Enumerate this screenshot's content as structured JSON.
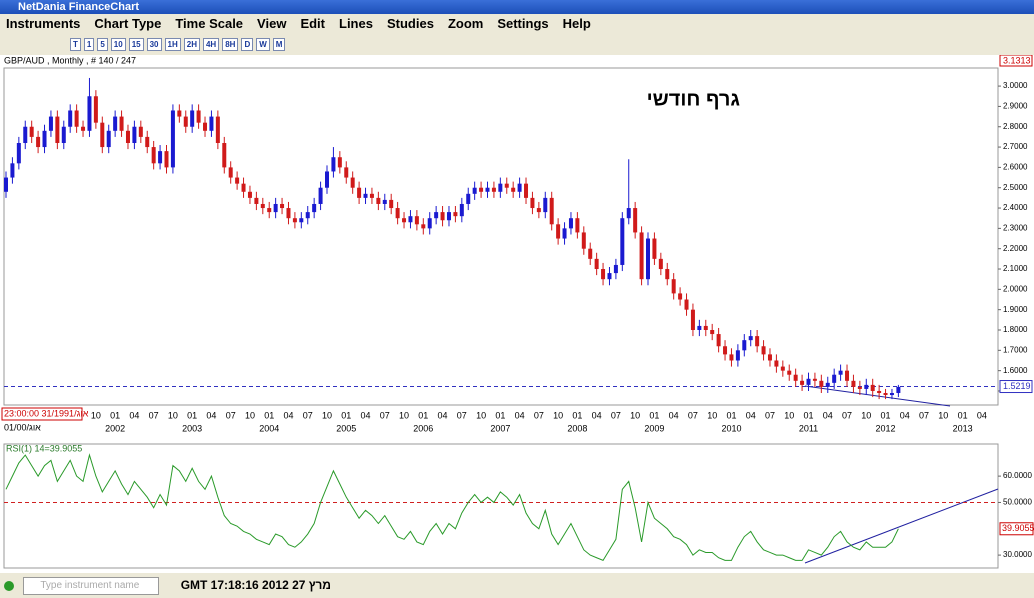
{
  "window": {
    "title": "NetDania FinanceChart"
  },
  "menu": [
    "Instruments",
    "Chart Type",
    "Time Scale",
    "View",
    "Edit",
    "Lines",
    "Studies",
    "Zoom",
    "Settings",
    "Help"
  ],
  "toolbar": {
    "buttons": [
      "T",
      "1",
      "5",
      "10",
      "15",
      "30",
      "1H",
      "2H",
      "4H",
      "8H",
      "D",
      "W",
      "M"
    ]
  },
  "instrument_label": "GBP/AUD , Monthly , # 140 / 247",
  "price_marker": "3.1313",
  "date_box": "23:00:00 31/1991/אוג",
  "date_sub": "01/00/אוג",
  "status": {
    "search_placeholder": "Type instrument name",
    "clock": "GMT 17:18:16 2012 מרץ 27"
  },
  "chart_data": [
    {
      "type": "candlestick",
      "annotation": "גרף חודשי",
      "up_color": "#1a1ad0",
      "down_color": "#d01a1a",
      "open": [
        2.48,
        2.55,
        2.62,
        2.72,
        2.8,
        2.75,
        2.7,
        2.78,
        2.85,
        2.72,
        2.8,
        2.88,
        2.8,
        2.78,
        2.95,
        2.82,
        2.7,
        2.78,
        2.85,
        2.78,
        2.72,
        2.8,
        2.75,
        2.7,
        2.62,
        2.68,
        2.6,
        2.88,
        2.85,
        2.8,
        2.88,
        2.82,
        2.78,
        2.85,
        2.72,
        2.6,
        2.55,
        2.52,
        2.48,
        2.45,
        2.42,
        2.4,
        2.38,
        2.42,
        2.4,
        2.35,
        2.33,
        2.35,
        2.38,
        2.42,
        2.5,
        2.58,
        2.65,
        2.6,
        2.55,
        2.5,
        2.45,
        2.47,
        2.45,
        2.42,
        2.44,
        2.4,
        2.35,
        2.33,
        2.36,
        2.32,
        2.3,
        2.35,
        2.38,
        2.34,
        2.38,
        2.36,
        2.42,
        2.47,
        2.5,
        2.48,
        2.5,
        2.48,
        2.52,
        2.5,
        2.48,
        2.52,
        2.45,
        2.4,
        2.38,
        2.45,
        2.32,
        2.25,
        2.3,
        2.35,
        2.28,
        2.2,
        2.15,
        2.1,
        2.05,
        2.08,
        2.12,
        2.35,
        2.4,
        2.28,
        2.05,
        2.25,
        2.15,
        2.1,
        2.05,
        1.98,
        1.95,
        1.9,
        1.8,
        1.82,
        1.8,
        1.78,
        1.72,
        1.68,
        1.65,
        1.7,
        1.75,
        1.77,
        1.72,
        1.68,
        1.65,
        1.62,
        1.6,
        1.58,
        1.55,
        1.53,
        1.56,
        1.55,
        1.52,
        1.54,
        1.58,
        1.6,
        1.55,
        1.52,
        1.51,
        1.53,
        1.5,
        1.49,
        1.48,
        1.49
      ],
      "high": [
        2.58,
        2.65,
        2.75,
        2.83,
        2.83,
        2.78,
        2.81,
        2.88,
        2.88,
        2.83,
        2.91,
        2.91,
        2.83,
        3.04,
        2.98,
        2.85,
        2.81,
        2.88,
        2.88,
        2.81,
        2.83,
        2.83,
        2.78,
        2.73,
        2.71,
        2.71,
        2.91,
        2.91,
        2.88,
        2.91,
        2.91,
        2.85,
        2.88,
        2.88,
        2.75,
        2.63,
        2.58,
        2.55,
        2.51,
        2.48,
        2.45,
        2.43,
        2.45,
        2.45,
        2.43,
        2.38,
        2.38,
        2.41,
        2.45,
        2.53,
        2.61,
        2.7,
        2.68,
        2.63,
        2.58,
        2.53,
        2.5,
        2.5,
        2.48,
        2.47,
        2.47,
        2.43,
        2.38,
        2.39,
        2.39,
        2.35,
        2.38,
        2.41,
        2.41,
        2.41,
        2.41,
        2.45,
        2.5,
        2.53,
        2.53,
        2.53,
        2.53,
        2.55,
        2.55,
        2.53,
        2.55,
        2.55,
        2.48,
        2.43,
        2.48,
        2.48,
        2.35,
        2.33,
        2.38,
        2.38,
        2.31,
        2.23,
        2.18,
        2.13,
        2.11,
        2.15,
        2.38,
        2.64,
        2.43,
        2.31,
        2.28,
        2.28,
        2.18,
        2.13,
        2.08,
        2.01,
        1.98,
        1.93,
        1.85,
        1.85,
        1.83,
        1.81,
        1.75,
        1.71,
        1.73,
        1.78,
        1.8,
        1.8,
        1.75,
        1.71,
        1.68,
        1.65,
        1.63,
        1.61,
        1.58,
        1.59,
        1.59,
        1.58,
        1.57,
        1.61,
        1.63,
        1.63,
        1.58,
        1.55,
        1.56,
        1.56,
        1.53,
        1.51,
        1.51,
        1.53
      ],
      "low": [
        2.45,
        2.52,
        2.59,
        2.69,
        2.72,
        2.67,
        2.67,
        2.75,
        2.69,
        2.69,
        2.77,
        2.77,
        2.75,
        2.75,
        2.79,
        2.67,
        2.67,
        2.75,
        2.75,
        2.69,
        2.69,
        2.72,
        2.67,
        2.59,
        2.59,
        2.57,
        2.57,
        2.82,
        2.77,
        2.77,
        2.79,
        2.75,
        2.75,
        2.69,
        2.57,
        2.52,
        2.49,
        2.45,
        2.42,
        2.39,
        2.37,
        2.35,
        2.35,
        2.37,
        2.32,
        2.3,
        2.3,
        2.32,
        2.35,
        2.39,
        2.47,
        2.55,
        2.57,
        2.52,
        2.47,
        2.42,
        2.42,
        2.42,
        2.39,
        2.39,
        2.37,
        2.32,
        2.3,
        2.3,
        2.29,
        2.27,
        2.27,
        2.32,
        2.31,
        2.31,
        2.33,
        2.33,
        2.39,
        2.44,
        2.45,
        2.45,
        2.45,
        2.45,
        2.47,
        2.45,
        2.45,
        2.42,
        2.37,
        2.35,
        2.35,
        2.29,
        2.22,
        2.22,
        2.27,
        2.25,
        2.17,
        2.12,
        2.07,
        2.02,
        2.02,
        2.05,
        2.09,
        2.32,
        2.25,
        2.02,
        2.02,
        2.12,
        2.07,
        2.02,
        1.95,
        1.92,
        1.87,
        1.77,
        1.77,
        1.77,
        1.75,
        1.69,
        1.65,
        1.62,
        1.62,
        1.67,
        1.72,
        1.69,
        1.65,
        1.62,
        1.59,
        1.57,
        1.55,
        1.52,
        1.5,
        1.5,
        1.52,
        1.49,
        1.49,
        1.51,
        1.55,
        1.52,
        1.49,
        1.48,
        1.48,
        1.47,
        1.46,
        1.46,
        1.46,
        1.47
      ],
      "close": [
        2.55,
        2.62,
        2.72,
        2.8,
        2.75,
        2.7,
        2.78,
        2.85,
        2.72,
        2.8,
        2.88,
        2.8,
        2.78,
        2.95,
        2.82,
        2.7,
        2.78,
        2.85,
        2.78,
        2.72,
        2.8,
        2.75,
        2.7,
        2.62,
        2.68,
        2.6,
        2.88,
        2.85,
        2.8,
        2.88,
        2.82,
        2.78,
        2.85,
        2.72,
        2.6,
        2.55,
        2.52,
        2.48,
        2.45,
        2.42,
        2.4,
        2.38,
        2.42,
        2.4,
        2.35,
        2.33,
        2.35,
        2.38,
        2.42,
        2.5,
        2.58,
        2.65,
        2.6,
        2.55,
        2.5,
        2.45,
        2.47,
        2.45,
        2.42,
        2.44,
        2.4,
        2.35,
        2.33,
        2.36,
        2.32,
        2.3,
        2.35,
        2.38,
        2.34,
        2.38,
        2.36,
        2.42,
        2.47,
        2.5,
        2.48,
        2.5,
        2.48,
        2.52,
        2.5,
        2.48,
        2.52,
        2.45,
        2.4,
        2.38,
        2.45,
        2.32,
        2.25,
        2.3,
        2.35,
        2.28,
        2.2,
        2.15,
        2.1,
        2.05,
        2.08,
        2.12,
        2.35,
        2.4,
        2.28,
        2.05,
        2.25,
        2.15,
        2.1,
        2.05,
        1.98,
        1.95,
        1.9,
        1.8,
        1.82,
        1.8,
        1.78,
        1.72,
        1.68,
        1.65,
        1.7,
        1.75,
        1.77,
        1.72,
        1.68,
        1.65,
        1.62,
        1.6,
        1.58,
        1.55,
        1.53,
        1.56,
        1.55,
        1.52,
        1.54,
        1.58,
        1.6,
        1.55,
        1.52,
        1.51,
        1.53,
        1.5,
        1.49,
        1.48,
        1.49,
        1.52
      ],
      "ylim": [
        1.431,
        3.089
      ],
      "yticks": [
        {
          "value": 1.5,
          "label": "1.5000"
        },
        {
          "value": 1.6,
          "label": "1.6000"
        },
        {
          "value": 1.7,
          "label": "1.7000"
        },
        {
          "value": 1.8,
          "label": "1.8000"
        },
        {
          "value": 1.9,
          "label": "1.9000"
        },
        {
          "value": 2.0,
          "label": "2.0000"
        },
        {
          "value": 2.1,
          "label": "2.1000"
        },
        {
          "value": 2.2,
          "label": "2.2000"
        },
        {
          "value": 2.3,
          "label": "2.3000"
        },
        {
          "value": 2.4,
          "label": "2.4000"
        },
        {
          "value": 2.5,
          "label": "2.5000"
        },
        {
          "value": 2.6,
          "label": "2.6000"
        },
        {
          "value": 2.7,
          "label": "2.7000"
        },
        {
          "value": 2.8,
          "label": "2.8000"
        },
        {
          "value": 2.9,
          "label": "2.9000"
        },
        {
          "value": 3.0,
          "label": "3.0000"
        }
      ],
      "xticks": [
        "10",
        "01",
        "04",
        "07",
        "10",
        "01",
        "04",
        "07",
        "10",
        "01",
        "04",
        "07",
        "10",
        "01",
        "04",
        "07",
        "10",
        "01",
        "04",
        "07",
        "10",
        "01",
        "04",
        "07",
        "10",
        "01",
        "04",
        "07",
        "10",
        "01",
        "04",
        "07",
        "10",
        "01",
        "04",
        "07",
        "10",
        "01",
        "04",
        "07",
        "10",
        "01",
        "04",
        "07",
        "10",
        "01",
        "04"
      ],
      "year_labels": [
        "2002",
        "2003",
        "2004",
        "2005",
        "2006",
        "2007",
        "2008",
        "2009",
        "2010",
        "2011",
        "2012",
        "2013"
      ],
      "hline": {
        "value": 1.5219,
        "label": "1.5219",
        "color": "#3030c0"
      }
    },
    {
      "type": "line",
      "title": "RSI(1) 14=39.9055",
      "color": "#2a9a2a",
      "values": [
        55,
        60,
        65,
        68,
        64,
        60,
        64,
        66,
        58,
        62,
        66,
        60,
        58,
        68,
        60,
        54,
        58,
        62,
        57,
        53,
        58,
        55,
        52,
        48,
        53,
        49,
        64,
        62,
        58,
        63,
        58,
        55,
        60,
        52,
        45,
        42,
        41,
        39,
        38,
        36,
        35,
        34,
        38,
        37,
        34,
        33,
        35,
        38,
        42,
        50,
        56,
        62,
        57,
        52,
        48,
        44,
        47,
        45,
        42,
        45,
        41,
        37,
        36,
        39,
        35,
        34,
        39,
        42,
        38,
        42,
        40,
        46,
        50,
        53,
        50,
        52,
        50,
        54,
        52,
        49,
        53,
        46,
        42,
        40,
        47,
        38,
        34,
        38,
        42,
        37,
        32,
        30,
        29,
        28,
        32,
        36,
        55,
        58,
        48,
        35,
        50,
        44,
        42,
        40,
        37,
        36,
        34,
        30,
        32,
        31,
        31,
        29,
        28,
        28,
        33,
        37,
        39,
        35,
        32,
        31,
        30,
        30,
        29,
        28,
        28,
        32,
        31,
        30,
        33,
        37,
        39,
        35,
        33,
        32,
        35,
        33,
        33,
        33,
        35,
        40
      ],
      "ylim": [
        25.1,
        72.2
      ],
      "yticks": [
        {
          "value": 30,
          "label": "30.0000"
        },
        {
          "value": 50,
          "label": "50.0000"
        },
        {
          "value": 60,
          "label": "60.0000"
        }
      ],
      "hline": {
        "value": 50,
        "color": "#d02020"
      },
      "last_label": "39.9055"
    }
  ]
}
